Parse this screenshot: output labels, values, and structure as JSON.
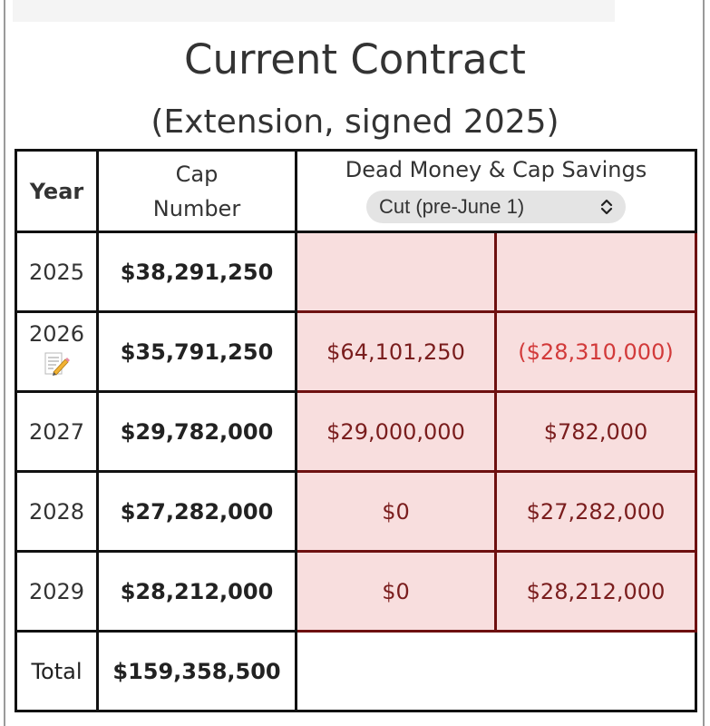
{
  "page": {
    "title": "Current Contract",
    "subtitle": "(Extension, signed 2025)"
  },
  "table": {
    "headers": {
      "year": "Year",
      "cap_number_line1": "Cap",
      "cap_number_line2": "Number",
      "dead_money": "Dead Money & Cap Savings"
    },
    "scenario_select": {
      "value": "Cut (pre-June 1)",
      "icon": "chevron-updown-icon"
    },
    "rows": [
      {
        "year": "2025",
        "cap_number": "$38,291,250",
        "dead_money": "",
        "cap_savings": "",
        "note_icon": false
      },
      {
        "year": "2026",
        "cap_number": "$35,791,250",
        "dead_money": "$64,101,250",
        "cap_savings": "($28,310,000)",
        "note_icon": true
      },
      {
        "year": "2027",
        "cap_number": "$29,782,000",
        "dead_money": "$29,000,000",
        "cap_savings": "$782,000",
        "note_icon": false
      },
      {
        "year": "2028",
        "cap_number": "$27,282,000",
        "dead_money": "$0",
        "cap_savings": "$27,282,000",
        "note_icon": false
      },
      {
        "year": "2029",
        "cap_number": "$28,212,000",
        "dead_money": "$0",
        "cap_savings": "$28,212,000",
        "note_icon": false
      }
    ],
    "total": {
      "label": "Total",
      "cap_number": "$159,358,500"
    }
  },
  "colors": {
    "highlight_bg": "#f8dede",
    "highlight_border": "#6e1010",
    "negative_text": "#d23a3a"
  }
}
